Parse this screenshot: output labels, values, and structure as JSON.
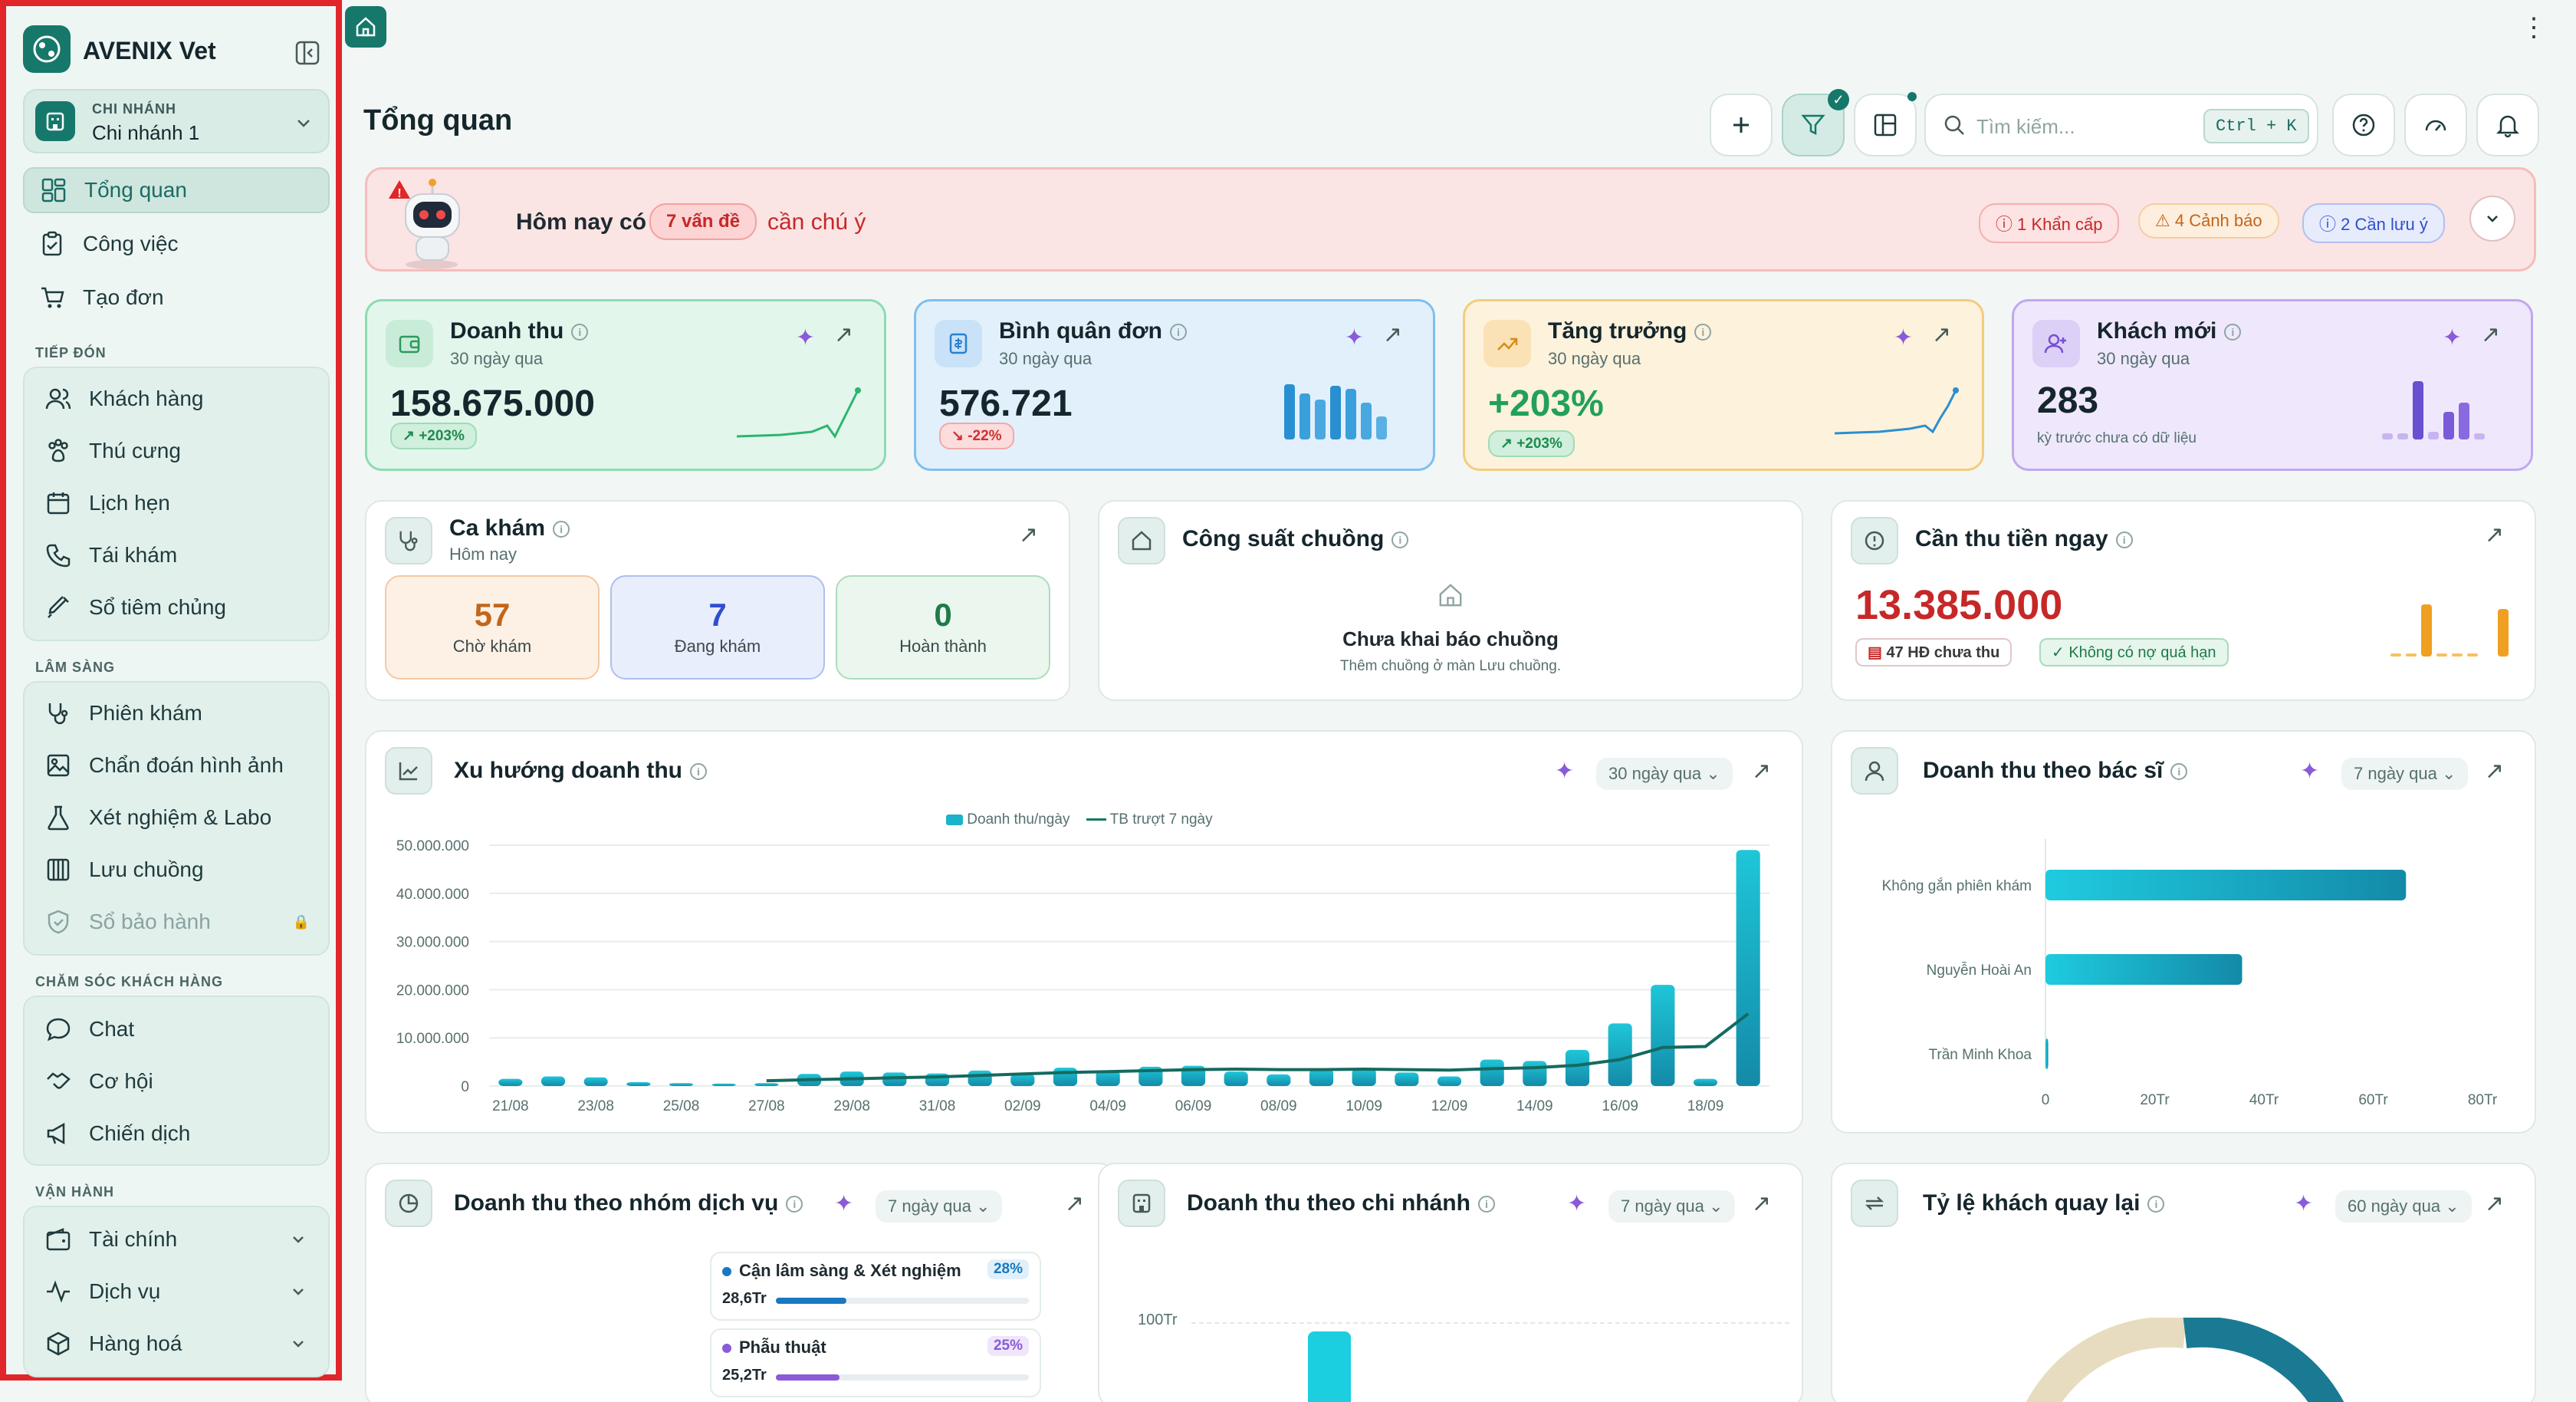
{
  "app": {
    "name": "AVENIX Vet"
  },
  "branch": {
    "label": "CHI NHÁNH",
    "value": "Chi nhánh 1"
  },
  "nav": {
    "main": [
      {
        "label": "Tổng quan"
      },
      {
        "label": "Công việc"
      },
      {
        "label": "Tạo đơn"
      }
    ],
    "sections": {
      "reception": "TIẾP ĐÓN",
      "clinical": "LÂM SÀNG",
      "care": "CHĂM SÓC KHÁCH HÀNG",
      "ops": "VẬN HÀNH"
    },
    "reception": [
      {
        "label": "Khách hàng"
      },
      {
        "label": "Thú cưng"
      },
      {
        "label": "Lịch hẹn"
      },
      {
        "label": "Tái khám"
      },
      {
        "label": "Sổ tiêm chủng"
      }
    ],
    "clinical": [
      {
        "label": "Phiên khám"
      },
      {
        "label": "Chẩn đoán hình ảnh"
      },
      {
        "label": "Xét nghiệm & Labo"
      },
      {
        "label": "Lưu chuồng"
      },
      {
        "label": "Sổ bảo hành"
      }
    ],
    "care": [
      {
        "label": "Chat"
      },
      {
        "label": "Cơ hội"
      },
      {
        "label": "Chiến dịch"
      }
    ],
    "ops": [
      {
        "label": "Tài chính"
      },
      {
        "label": "Dịch vụ"
      },
      {
        "label": "Hàng hoá"
      }
    ]
  },
  "header": {
    "title": "Tổng quan",
    "search_placeholder": "Tìm kiếm...",
    "shortcut": "Ctrl + K"
  },
  "alert": {
    "prefix": "Hôm nay có",
    "count": "7 vấn đề",
    "suffix": "cần chú ý",
    "urgent": "1 Khẩn cấp",
    "warning": "4 Cảnh báo",
    "notice": "2 Cần lưu ý"
  },
  "kpis": [
    {
      "title": "Doanh thu",
      "sub": "30 ngày qua",
      "value": "158.675.000",
      "badge": "+203%"
    },
    {
      "title": "Bình quân đơn",
      "sub": "30 ngày qua",
      "value": "576.721",
      "badge": "-22%"
    },
    {
      "title": "Tăng trưởng",
      "sub": "30 ngày qua",
      "value": "+203%",
      "badge": "+203%"
    },
    {
      "title": "Khách mới",
      "sub": "30 ngày qua",
      "value": "283",
      "note": "kỳ trước chưa có dữ liệu"
    }
  ],
  "exams": {
    "title": "Ca khám",
    "sub": "Hôm nay",
    "waiting": {
      "n": "57",
      "label": "Chờ khám"
    },
    "inprogress": {
      "n": "7",
      "label": "Đang khám"
    },
    "done": {
      "n": "0",
      "label": "Hoàn thành"
    }
  },
  "capacity": {
    "title": "Công suất chuồng",
    "empty_title": "Chưa khai báo chuồng",
    "empty_sub": "Thêm chuồng ở màn Lưu chuồng."
  },
  "collect": {
    "title": "Cần thu tiền ngay",
    "value": "13.385.000",
    "invoices": "47 HĐ chưa thu",
    "status": "Không có nợ quá hạn"
  },
  "revenue_trend": {
    "title": "Xu hướng doanh thu",
    "range": "30 ngày qua",
    "legend_bar": "Doanh thu/ngày",
    "legend_line": "TB trượt 7 ngày"
  },
  "doctor": {
    "title": "Doanh thu theo bác sĩ",
    "range": "7 ngày qua"
  },
  "service_group": {
    "title": "Doanh thu theo nhóm dịch vụ",
    "range": "7 ngày qua",
    "items": [
      {
        "name": "Cận lâm sàng & Xét nghiệm",
        "pct": "28%",
        "value": "28,6Tr"
      },
      {
        "name": "Phẫu thuật",
        "pct": "25%",
        "value": "25,2Tr"
      }
    ]
  },
  "branch_rev": {
    "title": "Doanh thu theo chi nhánh",
    "range": "7 ngày qua",
    "ytick": "100Tr"
  },
  "return_rate": {
    "title": "Tỷ lệ khách quay lại",
    "range": "60 ngày qua"
  },
  "colors": {
    "primary": "#16786a",
    "accent": "#1bb3c9",
    "danger": "#d93636"
  },
  "chart_data": [
    {
      "type": "bar",
      "title": "Xu hướng doanh thu",
      "categories": [
        "21/08",
        "22/08",
        "23/08",
        "24/08",
        "25/08",
        "26/08",
        "27/08",
        "28/08",
        "29/08",
        "30/08",
        "31/08",
        "01/09",
        "02/09",
        "03/09",
        "04/09",
        "05/09",
        "06/09",
        "07/09",
        "08/09",
        "09/09",
        "10/09",
        "11/09",
        "12/09",
        "13/09",
        "14/09",
        "15/09",
        "16/09",
        "17/09",
        "18/09",
        "19/09"
      ],
      "x_tick_labels": [
        "21/08",
        "23/08",
        "25/08",
        "27/08",
        "29/08",
        "31/08",
        "02/09",
        "04/09",
        "06/09",
        "08/09",
        "10/09",
        "12/09",
        "14/09",
        "16/09",
        "18/09"
      ],
      "series": [
        {
          "name": "Doanh thu/ngày",
          "values": [
            1500000,
            2000000,
            1800000,
            800000,
            600000,
            500000,
            600000,
            2500000,
            3000000,
            2800000,
            2600000,
            3200000,
            2500000,
            3800000,
            3200000,
            4000000,
            4200000,
            3000000,
            2400000,
            3500000,
            3700000,
            2800000,
            2000000,
            5500000,
            5200000,
            7500000,
            13000000,
            21000000,
            1500000,
            49000000
          ]
        },
        {
          "name": "TB trượt 7 ngày",
          "values": [
            null,
            null,
            null,
            null,
            null,
            null,
            1100000,
            1300000,
            1500000,
            1700000,
            1900000,
            2200000,
            2500000,
            2800000,
            3000000,
            3200000,
            3400000,
            3500000,
            3400000,
            3400000,
            3500000,
            3400000,
            3300000,
            3600000,
            3800000,
            4300000,
            5500000,
            8000000,
            8200000,
            15000000
          ]
        }
      ],
      "ylim": [
        0,
        50000000
      ],
      "yticks": [
        "0",
        "10.000.000",
        "20.000.000",
        "30.000.000",
        "40.000.000",
        "50.000.000"
      ],
      "legend": "top-center"
    },
    {
      "type": "bar",
      "orientation": "horizontal",
      "title": "Doanh thu theo bác sĩ",
      "categories": [
        "Không gắn phiên khám",
        "Nguyễn Hoài An",
        "Trần Minh Khoa"
      ],
      "values": [
        66,
        36,
        0.5
      ],
      "xlim": [
        0,
        80
      ],
      "xticks": [
        "0",
        "20Tr",
        "40Tr",
        "60Tr",
        "80Tr"
      ]
    }
  ]
}
